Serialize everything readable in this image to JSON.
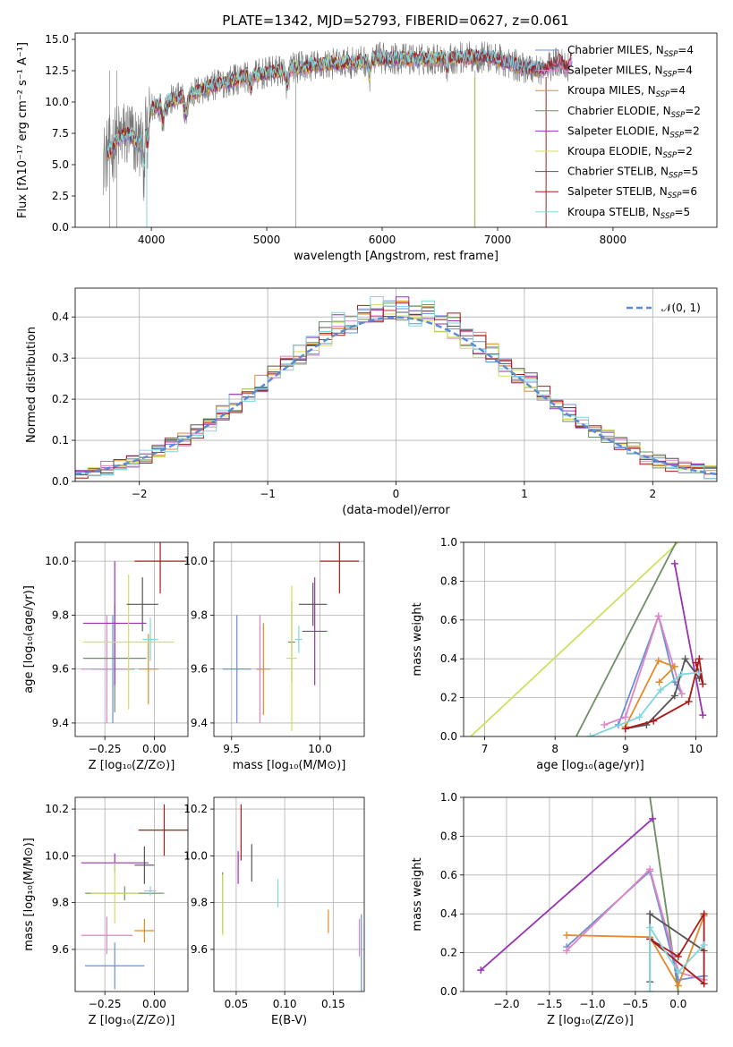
{
  "figure": {
    "title": "PLATE=1342, MJD=52793, FIBERID=0627, z=0.061"
  },
  "colors": {
    "Chabrier MILES": "#6a8fd8",
    "Salpeter MILES": "#e084c4",
    "Kroupa MILES": "#e08a2c",
    "Chabrier ELODIE": "#6e8f68",
    "Salpeter ELODIE": "#9a32b4",
    "Kroupa ELODIE": "#cfe060",
    "Chabrier STELIB": "#555555",
    "Salpeter STELIB": "#aa1a1a",
    "Kroupa STELIB": "#7fd6dc",
    "data": "#777777",
    "normal": "#5b8ad6"
  },
  "chart_data": [
    {
      "id": "spectrum",
      "type": "line",
      "title": "PLATE=1342, MJD=52793, FIBERID=0627, z=0.061",
      "xlabel": "wavelength [Angstrom, rest frame]",
      "ylabel": "Flux [fλ10⁻¹⁷ erg cm⁻² s⁻¹ A⁻¹]",
      "xlim": [
        3340,
        8900
      ],
      "ylim": [
        0,
        15.5
      ],
      "xticks": [
        4000,
        5000,
        6000,
        7000,
        8000
      ],
      "yticks": [
        0.0,
        2.5,
        5.0,
        7.5,
        10.0,
        12.5,
        15.0
      ],
      "legend_position": "right",
      "series": [
        {
          "name": "Chabrier MILES, N_SSP=4",
          "label_main": "Chabrier MILES, N",
          "label_sub": "SSP",
          "label_end": "=4"
        },
        {
          "name": "Salpeter MILES, N_SSP=4",
          "label_main": "Salpeter MILES, N",
          "label_sub": "SSP",
          "label_end": "=4"
        },
        {
          "name": "Kroupa MILES, N_SSP=4",
          "label_main": "Kroupa MILES, N",
          "label_sub": "SSP",
          "label_end": "=4"
        },
        {
          "name": "Chabrier ELODIE, N_SSP=2",
          "label_main": "Chabrier ELODIE, N",
          "label_sub": "SSP",
          "label_end": "=2"
        },
        {
          "name": "Salpeter ELODIE, N_SSP=2",
          "label_main": "Salpeter ELODIE, N",
          "label_sub": "SSP",
          "label_end": "=2"
        },
        {
          "name": "Kroupa ELODIE, N_SSP=2",
          "label_main": "Kroupa ELODIE, N",
          "label_sub": "SSP",
          "label_end": "=2"
        },
        {
          "name": "Chabrier STELIB, N_SSP=5",
          "label_main": "Chabrier STELIB, N",
          "label_sub": "SSP",
          "label_end": "=5"
        },
        {
          "name": "Salpeter STELIB, N_SSP=6",
          "label_main": "Salpeter STELIB, N",
          "label_sub": "SSP",
          "label_end": "=6"
        },
        {
          "name": "Kroupa STELIB, N_SSP=5",
          "label_main": "Kroupa STELIB, N",
          "label_sub": "SSP",
          "label_end": "=5"
        }
      ],
      "continuum": {
        "x": [
          3600,
          3700,
          3800,
          3900,
          4000,
          4200,
          4500,
          4800,
          5000,
          5200,
          5500,
          5800,
          6000,
          6300,
          6600,
          6900,
          7000,
          7200,
          7400,
          7600
        ],
        "y": [
          5.5,
          7.0,
          7.5,
          6.5,
          9.5,
          10.2,
          11.2,
          12.0,
          12.3,
          12.7,
          13.0,
          13.2,
          13.5,
          13.4,
          13.5,
          13.6,
          13.4,
          12.8,
          12.6,
          13.5
        ]
      },
      "model_end_x": [
        7650,
        7650,
        7420,
        7420,
        7420,
        6800,
        7600,
        7650,
        7420
      ]
    },
    {
      "id": "residuals",
      "type": "line",
      "xlabel": "(data-model)/error",
      "ylabel": "Normed distribution",
      "xlim": [
        -2.5,
        2.5
      ],
      "ylim": [
        0,
        0.47
      ],
      "xticks": [
        -2,
        -1,
        0,
        1,
        2
      ],
      "yticks": [
        0.0,
        0.1,
        0.2,
        0.3,
        0.4
      ],
      "legend_position": "top-right",
      "grid": true,
      "normal_label": "𝒩(0, 1)",
      "bin_width": 0.1
    },
    {
      "id": "age-vs-Z",
      "type": "scatter",
      "xlabel": "Z [log₁₀(Z/Z⊙)]",
      "ylabel": "age  [log₁₀(age/yr)]",
      "xlim": [
        -0.4,
        0.17
      ],
      "ylim": [
        9.35,
        10.07
      ],
      "xticks": [
        -0.25,
        0.0
      ],
      "xticklabels": [
        "−0.25",
        "0.00"
      ],
      "yticks": [
        9.4,
        9.6,
        9.8,
        10.0
      ],
      "grid": true,
      "points": [
        {
          "model": "Chabrier MILES",
          "x": -0.21,
          "xerr": 0.11,
          "y": 9.6,
          "yerr": 0.2
        },
        {
          "model": "Salpeter MILES",
          "x": -0.24,
          "xerr": 0.13,
          "y": 9.6,
          "yerr": 0.2
        },
        {
          "model": "Kroupa MILES",
          "x": -0.03,
          "xerr": 0.05,
          "y": 9.6,
          "yerr": 0.13
        },
        {
          "model": "Chabrier ELODIE",
          "x": -0.2,
          "xerr": 0.16,
          "y": 9.64,
          "yerr": 0.2
        },
        {
          "model": "Salpeter ELODIE",
          "x": -0.2,
          "xerr": 0.16,
          "y": 9.77,
          "yerr": 0.23
        },
        {
          "model": "Kroupa ELODIE",
          "x": -0.13,
          "xerr": 0.23,
          "y": 9.7,
          "yerr": 0.25
        },
        {
          "model": "Chabrier STELIB",
          "x": -0.06,
          "xerr": 0.08,
          "y": 9.84,
          "yerr": 0.1
        },
        {
          "model": "Salpeter STELIB",
          "x": 0.03,
          "xerr": 0.13,
          "y": 10.0,
          "yerr": 0.12
        },
        {
          "model": "Kroupa STELIB",
          "x": -0.02,
          "xerr": 0.04,
          "y": 9.71,
          "yerr": 0.08
        }
      ]
    },
    {
      "id": "age-vs-mass",
      "type": "scatter",
      "xlabel": "mass [log₁₀(M/M⊙)]",
      "xlim": [
        9.4,
        10.25
      ],
      "ylim": [
        9.35,
        10.07
      ],
      "xticks": [
        9.5,
        10.0
      ],
      "yticks": [
        9.4,
        9.6,
        9.8,
        10.0
      ],
      "grid": true,
      "points": [
        {
          "model": "Chabrier MILES",
          "x": 9.53,
          "xerr": 0.08,
          "y": 9.6,
          "yerr": 0.2
        },
        {
          "model": "Salpeter MILES",
          "x": 9.66,
          "xerr": 0.02,
          "y": 9.6,
          "yerr": 0.2
        },
        {
          "model": "Kroupa MILES",
          "x": 9.68,
          "xerr": 0.04,
          "y": 9.6,
          "yerr": 0.17
        },
        {
          "model": "Chabrier ELODIE",
          "x": 9.84,
          "xerr": 0.02,
          "y": 9.7,
          "yerr": 0.15
        },
        {
          "model": "Salpeter ELODIE",
          "x": 9.97,
          "xerr": 0.07,
          "y": 9.74,
          "yerr": 0.2
        },
        {
          "model": "Kroupa ELODIE",
          "x": 9.84,
          "xerr": 0.03,
          "y": 9.64,
          "yerr": 0.27
        },
        {
          "model": "Chabrier STELIB",
          "x": 9.96,
          "xerr": 0.08,
          "y": 9.84,
          "yerr": 0.08
        },
        {
          "model": "Salpeter STELIB",
          "x": 10.11,
          "xerr": 0.11,
          "y": 10.0,
          "yerr": 0.12
        },
        {
          "model": "Kroupa STELIB",
          "x": 9.88,
          "xerr": 0.02,
          "y": 9.71,
          "yerr": 0.05
        }
      ]
    },
    {
      "id": "weight-vs-age",
      "type": "line",
      "xlabel": "age  [log₁₀(age/yr)]",
      "ylabel": "mass weight",
      "xlim": [
        6.7,
        10.3
      ],
      "ylim": [
        0,
        1
      ],
      "xticks": [
        7,
        8,
        9,
        10
      ],
      "yticks": [
        0.0,
        0.2,
        0.4,
        0.6,
        0.8,
        1.0
      ],
      "grid": true,
      "series": [
        {
          "model": "Kroupa ELODIE",
          "markers": false,
          "x": [
            6.8,
            9.75
          ],
          "y": [
            0.0,
            1.0
          ]
        },
        {
          "model": "Chabrier ELODIE",
          "markers": false,
          "x": [
            8.3,
            9.72
          ],
          "y": [
            0.0,
            1.0
          ]
        },
        {
          "model": "Salpeter ELODIE",
          "markers": true,
          "x": [
            9.7,
            10.1
          ],
          "y": [
            0.89,
            0.11
          ]
        },
        {
          "model": "Chabrier MILES",
          "markers": true,
          "x": [
            8.9,
            9.47,
            9.7,
            9.8
          ],
          "y": [
            0.06,
            0.62,
            0.28,
            0.22
          ]
        },
        {
          "model": "Salpeter MILES",
          "markers": true,
          "x": [
            8.7,
            9.0,
            9.47,
            9.8
          ],
          "y": [
            0.06,
            0.1,
            0.62,
            0.22
          ]
        },
        {
          "model": "Kroupa MILES",
          "markers": true,
          "x": [
            9.0,
            9.47,
            9.7,
            9.48
          ],
          "y": [
            0.05,
            0.39,
            0.36,
            0.28
          ]
        },
        {
          "model": "Chabrier STELIB",
          "markers": true,
          "x": [
            9.0,
            9.3,
            9.7,
            9.85,
            10.05
          ],
          "y": [
            0.04,
            0.06,
            0.21,
            0.4,
            0.3
          ]
        },
        {
          "model": "Salpeter STELIB",
          "markers": true,
          "x": [
            9.0,
            9.4,
            9.9,
            10.05,
            10.1,
            10.0
          ],
          "y": [
            0.04,
            0.08,
            0.18,
            0.4,
            0.27,
            0.38
          ]
        },
        {
          "model": "Kroupa STELIB",
          "markers": true,
          "x": [
            8.5,
            9.2,
            9.5,
            9.8,
            10.05
          ],
          "y": [
            0.0,
            0.1,
            0.24,
            0.32,
            0.33
          ]
        }
      ]
    },
    {
      "id": "mass-vs-Z",
      "type": "scatter",
      "xlabel": "Z [log₁₀(Z/Z⊙)]",
      "ylabel": "mass [log₁₀(M/M⊙)]",
      "xlim": [
        -0.4,
        0.17
      ],
      "ylim": [
        9.42,
        10.25
      ],
      "xticks": [
        -0.25,
        0.0
      ],
      "xticklabels": [
        "−0.25",
        "0.00"
      ],
      "yticks": [
        9.6,
        9.8,
        10.0,
        10.2
      ],
      "grid": true,
      "points": [
        {
          "model": "Chabrier MILES",
          "x": -0.2,
          "xerr": 0.15,
          "y": 9.53,
          "yerr": 0.1
        },
        {
          "model": "Salpeter MILES",
          "x": -0.24,
          "xerr": 0.13,
          "y": 9.66,
          "yerr": 0.08
        },
        {
          "model": "Kroupa MILES",
          "x": -0.05,
          "xerr": 0.05,
          "y": 9.68,
          "yerr": 0.05
        },
        {
          "model": "Chabrier ELODIE",
          "x": -0.15,
          "xerr": 0.2,
          "y": 9.84,
          "yerr": 0.03
        },
        {
          "model": "Salpeter ELODIE",
          "x": -0.2,
          "xerr": 0.17,
          "y": 9.97,
          "yerr": 0.04
        },
        {
          "model": "Kroupa ELODIE",
          "x": -0.2,
          "xerr": 0.12,
          "y": 9.84,
          "yerr": 0.13
        },
        {
          "model": "Chabrier STELIB",
          "x": -0.05,
          "xerr": 0.05,
          "y": 9.96,
          "yerr": 0.08
        },
        {
          "model": "Salpeter STELIB",
          "x": 0.05,
          "xerr": 0.13,
          "y": 10.11,
          "yerr": 0.11
        },
        {
          "model": "Kroupa STELIB",
          "x": -0.02,
          "xerr": 0.03,
          "y": 9.85,
          "yerr": 0.02
        }
      ]
    },
    {
      "id": "mass-vs-ebv",
      "type": "scatter",
      "xlabel": "E(B-V)",
      "xlim": [
        0.027,
        0.182
      ],
      "ylim": [
        9.42,
        10.25
      ],
      "xticks": [
        0.05,
        0.1,
        0.15
      ],
      "yticks": [
        9.6,
        9.8,
        10.0,
        10.2
      ],
      "grid": true,
      "points": [
        {
          "model": "Chabrier MILES",
          "x": 0.179,
          "y": 9.58,
          "yerr": 0.17
        },
        {
          "model": "Salpeter MILES",
          "x": 0.177,
          "y": 9.65,
          "yerr": 0.08
        },
        {
          "model": "Kroupa MILES",
          "x": 0.145,
          "y": 9.72,
          "yerr": 0.05
        },
        {
          "model": "Chabrier ELODIE",
          "x": 0.036,
          "y": 9.8,
          "yerr": 0.13
        },
        {
          "model": "Salpeter ELODIE",
          "x": 0.052,
          "y": 9.95,
          "yerr": 0.07
        },
        {
          "model": "Kroupa ELODIE",
          "x": 0.036,
          "y": 9.79,
          "yerr": 0.13
        },
        {
          "model": "Chabrier STELIB",
          "x": 0.066,
          "y": 9.97,
          "yerr": 0.08
        },
        {
          "model": "Salpeter STELIB",
          "x": 0.055,
          "y": 10.1,
          "yerr": 0.12
        },
        {
          "model": "Kroupa STELIB",
          "x": 0.093,
          "y": 9.84,
          "yerr": 0.06
        }
      ]
    },
    {
      "id": "weight-vs-Z",
      "type": "line",
      "xlabel": "Z [log₁₀(Z/Z⊙)]",
      "ylabel": "mass weight",
      "xlim": [
        -2.5,
        0.45
      ],
      "ylim": [
        0,
        1
      ],
      "xticks": [
        -2.0,
        -1.5,
        -1.0,
        -0.5,
        0.0
      ],
      "xticklabels": [
        "−2.0",
        "−1.5",
        "−1.0",
        "−0.5",
        "0.0"
      ],
      "yticks": [
        0.0,
        0.2,
        0.4,
        0.6,
        0.8,
        1.0
      ],
      "grid": true,
      "series": [
        {
          "model": "Kroupa ELODIE",
          "markers": false,
          "x": [
            -0.33,
            0.0
          ],
          "y": [
            1.0,
            0.0
          ]
        },
        {
          "model": "Chabrier ELODIE",
          "markers": false,
          "x": [
            -0.33,
            0.0
          ],
          "y": [
            1.0,
            0.0
          ]
        },
        {
          "model": "Salpeter ELODIE",
          "markers": true,
          "x": [
            -2.3,
            -0.3
          ],
          "y": [
            0.11,
            0.89
          ]
        },
        {
          "model": "Chabrier MILES",
          "markers": true,
          "x": [
            -1.3,
            -0.33,
            0.0,
            0.3
          ],
          "y": [
            0.23,
            0.62,
            0.06,
            0.08
          ]
        },
        {
          "model": "Salpeter MILES",
          "markers": true,
          "x": [
            -1.3,
            -0.33,
            0.0,
            0.3
          ],
          "y": [
            0.21,
            0.63,
            0.1,
            0.06
          ]
        },
        {
          "model": "Kroupa MILES",
          "markers": true,
          "x": [
            -1.3,
            -0.33,
            0.0,
            0.3
          ],
          "y": [
            0.29,
            0.28,
            0.03,
            0.39
          ]
        },
        {
          "model": "Chabrier STELIB",
          "markers": true,
          "x": [
            -0.33,
            -0.33,
            0.3
          ],
          "y": [
            0.05,
            0.4,
            0.21
          ]
        },
        {
          "model": "Salpeter STELIB",
          "markers": true,
          "x": [
            -0.33,
            0.3,
            0.3,
            0.0,
            -0.33
          ],
          "y": [
            0.27,
            0.04,
            0.4,
            0.18,
            0.27
          ]
        },
        {
          "model": "Kroupa STELIB",
          "markers": true,
          "x": [
            -0.33,
            -0.33,
            0.0,
            0.3
          ],
          "y": [
            0.0,
            0.33,
            0.1,
            0.24
          ]
        }
      ]
    }
  ]
}
